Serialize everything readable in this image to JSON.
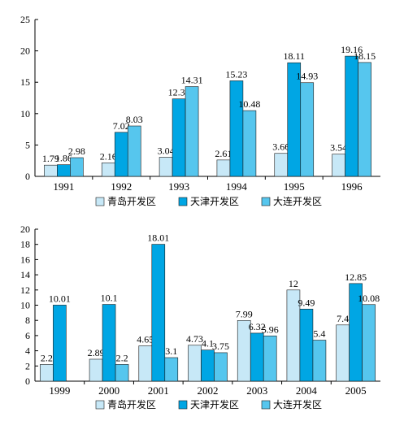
{
  "chart_data": [
    {
      "type": "bar",
      "categories": [
        "1991",
        "1992",
        "1993",
        "1994",
        "1995",
        "1996"
      ],
      "ylim": [
        0,
        25
      ],
      "yticks": [
        0,
        5,
        10,
        15,
        20,
        25
      ],
      "legend_position": "bottom",
      "grid": false,
      "series": [
        {
          "name": "青岛开发区",
          "color": "#c7e8f7",
          "values": [
            1.79,
            2.16,
            3.04,
            2.61,
            3.66,
            3.54
          ],
          "labels": [
            "1.79",
            "2.16",
            "3.04",
            "2.61",
            "3.66",
            "3.54"
          ]
        },
        {
          "name": "天津开发区",
          "color": "#00a6e4",
          "values": [
            1.86,
            7.02,
            12.35,
            15.23,
            18.11,
            19.16
          ],
          "labels": [
            "1.86",
            "7.02",
            "12.35",
            "15.23",
            "18.11",
            "19.16"
          ]
        },
        {
          "name": "大连开发区",
          "color": "#56c6ee",
          "values": [
            2.98,
            8.03,
            14.31,
            10.48,
            14.93,
            18.15
          ],
          "labels": [
            "2.98",
            "8.03",
            "14.31",
            "10.48",
            "14.93",
            "18.15"
          ]
        }
      ]
    },
    {
      "type": "bar",
      "categories": [
        "1999",
        "2000",
        "2001",
        "2002",
        "2003",
        "2004",
        "2005"
      ],
      "ylim": [
        0,
        20
      ],
      "yticks": [
        0,
        2,
        4,
        6,
        8,
        10,
        12,
        14,
        16,
        18,
        20
      ],
      "legend_position": "bottom",
      "grid": false,
      "series": [
        {
          "name": "青岛开发区",
          "color": "#c7e8f7",
          "values": [
            2.2,
            2.89,
            4.65,
            4.73,
            7.99,
            12,
            7.4
          ],
          "labels": [
            "2.2",
            "2.89",
            "4.65",
            "4.73",
            "7.99",
            "12",
            "7.4"
          ]
        },
        {
          "name": "天津开发区",
          "color": "#00a6e4",
          "values": [
            10.01,
            10.1,
            18.01,
            4.1,
            6.32,
            9.49,
            12.85
          ],
          "labels": [
            "10.01",
            "10.1",
            "18.01",
            "4.1",
            "6.32",
            "9.49",
            "12.85"
          ]
        },
        {
          "name": "大连开发区",
          "color": "#56c6ee",
          "values": [
            0,
            2.2,
            3.1,
            3.75,
            5.96,
            5.4,
            10.08
          ],
          "labels": [
            "",
            "2.2",
            "3.1",
            "3.75",
            "5.96",
            "5.4",
            "10.08"
          ]
        }
      ]
    }
  ]
}
